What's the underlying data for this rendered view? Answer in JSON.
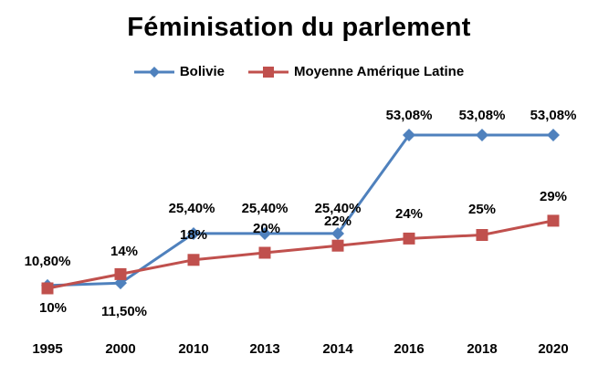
{
  "chart_data": {
    "type": "line",
    "title": "Féminisation du parlement",
    "categories": [
      "1995",
      "2000",
      "2010",
      "2013",
      "2014",
      "2016",
      "2018",
      "2020"
    ],
    "ylim": [
      0,
      60
    ],
    "grid": false,
    "legend_placement": "top-center",
    "series": [
      {
        "name": "Bolivie",
        "color": "#4F81BD",
        "marker": "diamond",
        "values": [
          10.8,
          11.5,
          25.4,
          25.4,
          25.4,
          53.08,
          53.08,
          53.08
        ],
        "labels": [
          "10,80%",
          "11,50%",
          "25,40%",
          "25,40%",
          "25,40%",
          "53,08%",
          "53,08%",
          "53,08%"
        ]
      },
      {
        "name": "Moyenne Amérique Latine",
        "color": "#C0504D",
        "marker": "square",
        "values": [
          10,
          14,
          18,
          20,
          22,
          24,
          25,
          29
        ],
        "labels": [
          "10%",
          "14%",
          "18%",
          "20%",
          "22%",
          "24%",
          "25%",
          "29%"
        ]
      }
    ]
  }
}
